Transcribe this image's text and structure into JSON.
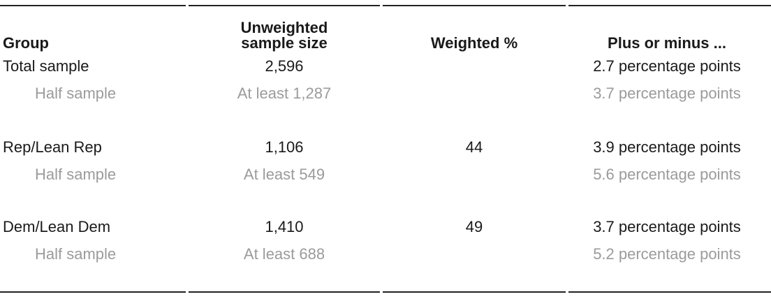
{
  "chart_data": {
    "type": "table",
    "title": "",
    "columns": [
      "Group",
      "Unweighted sample size",
      "Weighted %",
      "Plus or minus ..."
    ],
    "header": {
      "group": "Group",
      "unweighted_line1": "Unweighted",
      "unweighted_line2": "sample size",
      "weighted": "Weighted %",
      "moe": "Plus or minus ..."
    },
    "rows": [
      {
        "group": "Total sample",
        "unweighted_sample_size": "2,596",
        "weighted_pct": "",
        "margin_of_error": "2.7 percentage points",
        "muted": false,
        "indent": false
      },
      {
        "group": "Half sample",
        "unweighted_sample_size": "At least 1,287",
        "weighted_pct": "",
        "margin_of_error": "3.7 percentage points",
        "muted": true,
        "indent": true
      },
      {
        "group": "Rep/Lean Rep",
        "unweighted_sample_size": "1,106",
        "weighted_pct": "44",
        "margin_of_error": "3.9 percentage points",
        "muted": false,
        "indent": false
      },
      {
        "group": "Half sample",
        "unweighted_sample_size": "At least 549",
        "weighted_pct": "",
        "margin_of_error": "5.6 percentage points",
        "muted": true,
        "indent": true
      },
      {
        "group": "Dem/Lean Dem",
        "unweighted_sample_size": "1,410",
        "weighted_pct": "49",
        "margin_of_error": "3.7 percentage points",
        "muted": false,
        "indent": false
      },
      {
        "group": "Half sample",
        "unweighted_sample_size": "At least 688",
        "weighted_pct": "",
        "margin_of_error": "5.2 percentage points",
        "muted": true,
        "indent": true
      }
    ],
    "layout": {
      "grid": false,
      "rules": "segmented top and bottom rules with breaks at each column boundary",
      "column_alignment": [
        "left",
        "center",
        "center",
        "center"
      ]
    }
  },
  "colors": {
    "text": "#1a1a1a",
    "muted_text": "#9b9b9b",
    "rule": "#222222",
    "background": "#ffffff"
  }
}
